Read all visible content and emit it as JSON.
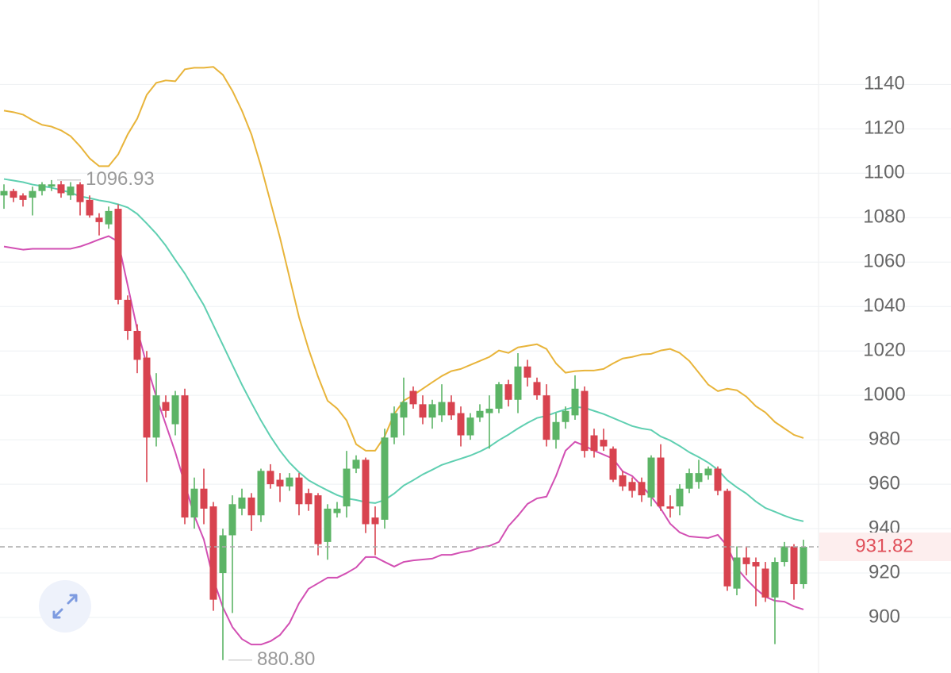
{
  "chart_data": {
    "type": "candlestick",
    "up_color": "#5cb466",
    "down_color": "#d8434f",
    "ylim": [
      875,
      1178
    ],
    "yticks": [
      900,
      920,
      940,
      960,
      980,
      1000,
      1020,
      1040,
      1060,
      1080,
      1100,
      1120,
      1140
    ],
    "grid": true,
    "open": [
      1090,
      1092,
      1090,
      1089,
      1092,
      1094,
      1095,
      1090,
      1095,
      1088,
      1080,
      1077,
      1084,
      1043,
      1029,
      1017,
      981,
      997,
      987,
      1000,
      945,
      958,
      950,
      920,
      937,
      949,
      954,
      946,
      966,
      962,
      959,
      963,
      956,
      955,
      934,
      947,
      950,
      967,
      971,
      945,
      944,
      981,
      990,
      1002,
      996,
      990,
      991,
      997,
      992,
      982,
      990,
      992,
      994,
      1005,
      998,
      1013,
      1006,
      1000,
      980,
      988,
      991,
      1002,
      982,
      980,
      976,
      964,
      961,
      961,
      954,
      972,
      950,
      950,
      958,
      961,
      964,
      967,
      957,
      913,
      927,
      925,
      922,
      909,
      925,
      932,
      915
    ],
    "high": [
      1095,
      1093,
      1091,
      1094,
      1096,
      1096.93,
      1096.5,
      1096,
      1096,
      1090,
      1082,
      1085,
      1086,
      1045,
      1032,
      1020,
      1010,
      1000,
      1002,
      1003,
      963,
      967,
      952,
      940,
      955,
      958,
      956,
      967,
      969,
      965,
      965,
      965,
      958,
      956,
      951,
      952,
      975,
      973,
      972,
      950,
      985,
      995,
      1008,
      1004,
      1000,
      998,
      1005,
      1000,
      995,
      992,
      996,
      1000,
      1006,
      1007,
      1019,
      1016,
      1008,
      1005,
      992,
      995,
      1009,
      1004,
      985,
      985,
      977,
      966,
      963,
      963,
      973,
      978,
      955,
      960,
      967,
      971,
      968,
      968,
      958,
      932,
      932,
      927,
      925,
      927,
      934,
      933,
      935
    ],
    "low": [
      1084,
      1087,
      1085,
      1081,
      1090,
      1092,
      1089,
      1088,
      1081,
      1080,
      1072,
      1075,
      1041,
      1025,
      1010,
      961,
      977,
      990,
      982,
      942,
      940,
      942,
      903,
      880.8,
      902,
      946,
      939,
      943,
      958,
      952,
      957,
      946,
      948,
      928,
      926,
      945,
      945,
      965,
      938,
      928,
      940,
      978,
      982,
      994,
      987,
      985,
      988,
      989,
      977,
      980,
      988,
      976,
      992,
      995,
      992,
      1004,
      998,
      977,
      976,
      985,
      989,
      972,
      972,
      975,
      961,
      957,
      954,
      952,
      950,
      948,
      945,
      946,
      956,
      958,
      962,
      955,
      912,
      910,
      919,
      905,
      907,
      888,
      923,
      908,
      913
    ],
    "close": [
      1092,
      1089,
      1088,
      1092,
      1095,
      1095,
      1091,
      1094,
      1087,
      1081,
      1078,
      1083,
      1043,
      1029,
      1016,
      981,
      1000,
      993,
      1000,
      945,
      958,
      949,
      908,
      937,
      951,
      954,
      946,
      966,
      960,
      959,
      963,
      951,
      951,
      933,
      949,
      949,
      967,
      971,
      942,
      942,
      981,
      992,
      997,
      996,
      990,
      996,
      997,
      991,
      982,
      990,
      993,
      994,
      1005,
      998,
      1013,
      1008,
      1000,
      980,
      988,
      993,
      1003,
      975,
      975,
      977,
      962,
      959,
      957,
      955,
      972,
      950,
      949,
      958,
      965,
      965,
      967,
      957,
      914,
      927,
      924,
      923,
      909,
      925,
      932,
      915,
      931.82
    ],
    "bands": [
      {
        "color": "#e8b43a",
        "values": [
          1128.2,
          1127.5,
          1126.4,
          1123.9,
          1121.8,
          1121.0,
          1119.3,
          1116.7,
          1112.1,
          1106.7,
          1103.2,
          1103.2,
          1108.5,
          1117.5,
          1124.6,
          1135.3,
          1140.7,
          1141.8,
          1141.4,
          1146.8,
          1147.5,
          1147.5,
          1147.9,
          1144.3,
          1137.1,
          1128.2,
          1117.5,
          1103.2,
          1087.1,
          1071.0,
          1053.1,
          1035.2,
          1020.9,
          1008.4,
          997.6,
          994.1,
          988.7,
          978.0,
          975.1,
          975.1,
          981.5,
          991.6,
          997.6,
          1000.1,
          1003.0,
          1005.9,
          1008.7,
          1010.9,
          1011.9,
          1013.7,
          1015.5,
          1017.3,
          1020.2,
          1019.1,
          1021.6,
          1022.3,
          1023.0,
          1020.9,
          1014.4,
          1010.2,
          1010.9,
          1011.2,
          1011.2,
          1011.9,
          1014.4,
          1016.6,
          1017.3,
          1018.4,
          1018.7,
          1020.2,
          1020.9,
          1019.1,
          1015.5,
          1010.2,
          1004.8,
          1001.9,
          1003.0,
          1002.3,
          999.4,
          995.1,
          992.3,
          988.0,
          985.1,
          982.2,
          980.8
        ]
      },
      {
        "color": "#5fcfb1",
        "values": [
          1097.4,
          1096.7,
          1096.0,
          1094.9,
          1094.2,
          1093.5,
          1092.4,
          1091.3,
          1089.6,
          1088.8,
          1087.8,
          1087.1,
          1086.0,
          1084.6,
          1081.7,
          1077.4,
          1072.8,
          1067.4,
          1061.0,
          1054.9,
          1047.7,
          1040.6,
          1031.6,
          1022.7,
          1013.7,
          1004.8,
          996.6,
          988.7,
          981.5,
          975.1,
          969.7,
          965.4,
          961.8,
          959.4,
          957.2,
          955.1,
          953.6,
          952.9,
          951.9,
          951.5,
          952.9,
          955.8,
          959.4,
          961.8,
          964.4,
          966.5,
          968.7,
          970.1,
          971.5,
          972.9,
          974.7,
          976.9,
          979.8,
          982.3,
          985.1,
          987.6,
          989.8,
          990.8,
          992.3,
          993.7,
          994.8,
          994.4,
          993.0,
          991.6,
          989.8,
          988.0,
          986.2,
          985.1,
          984.4,
          981.5,
          979.7,
          977.2,
          974.4,
          972.2,
          969.7,
          966.5,
          961.8,
          958.6,
          955.8,
          952.2,
          949.3,
          947.6,
          945.8,
          944.3,
          943.3
        ]
      },
      {
        "color": "#d24fb3",
        "values": [
          1067.0,
          1066.3,
          1065.6,
          1066.0,
          1066.0,
          1066.0,
          1066.0,
          1066.0,
          1067.0,
          1068.5,
          1070.2,
          1071.7,
          1069.2,
          1049.5,
          1029.8,
          1013.7,
          999.4,
          986.9,
          974.4,
          960.1,
          945.8,
          935.1,
          917.2,
          904.6,
          895.7,
          890.3,
          887.8,
          887.8,
          889.3,
          892.1,
          897.5,
          906.4,
          912.9,
          915.4,
          917.9,
          917.9,
          920.0,
          922.5,
          927.2,
          927.2,
          925.0,
          922.9,
          925.0,
          925.7,
          926.1,
          926.5,
          928.2,
          928.2,
          929.3,
          930.0,
          931.5,
          932.2,
          934.0,
          941.1,
          945.8,
          951.1,
          953.6,
          954.4,
          963.7,
          975.1,
          979.1,
          977.3,
          975.1,
          973.3,
          971.5,
          965.8,
          963.7,
          959.4,
          954.4,
          949.0,
          942.2,
          938.3,
          936.5,
          936.1,
          935.8,
          937.2,
          932.2,
          922.2,
          917.2,
          912.9,
          909.3,
          907.5,
          907.1,
          905.0,
          903.6
        ]
      }
    ],
    "high_label": {
      "value": 1096.93,
      "label": "1096.93"
    },
    "low_label": {
      "value": 880.8,
      "label": "880.80"
    },
    "last_price": {
      "value": 931.82,
      "label": "931.82"
    },
    "last_price_color": "#e0505a"
  }
}
